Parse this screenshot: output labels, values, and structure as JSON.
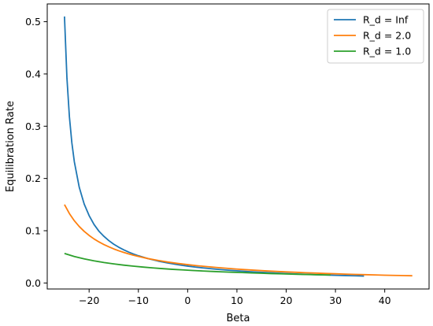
{
  "chart_data": {
    "type": "line",
    "xlabel": "Beta",
    "ylabel": "Equilibration Rate",
    "xlim": [
      -28.5,
      49.0
    ],
    "ylim": [
      -0.0115,
      0.534
    ],
    "xticks": [
      -20,
      -10,
      0,
      10,
      20,
      30,
      40
    ],
    "yticks": [
      0.0,
      0.1,
      0.2,
      0.3,
      0.4,
      0.5
    ],
    "ytick_labels": [
      "0.0",
      "0.1",
      "0.2",
      "0.3",
      "0.4",
      "0.5"
    ],
    "grid": false,
    "legend_placement": "top-right",
    "series": [
      {
        "name": "R_d = Inf",
        "color": "#1f77b4",
        "x": [
          -25,
          -24.5,
          -24,
          -23.5,
          -23,
          -22,
          -21,
          -20,
          -19,
          -18,
          -17,
          -16,
          -15,
          -14,
          -13,
          -12,
          -11,
          -10,
          -8,
          -6,
          -4,
          -2,
          0,
          2,
          4,
          6,
          8,
          10,
          12,
          14,
          16,
          18,
          20,
          22,
          24,
          26,
          28,
          30,
          32,
          34,
          35.8
        ],
        "y": [
          0.51,
          0.392,
          0.318,
          0.268,
          0.232,
          0.183,
          0.151,
          0.129,
          0.112,
          0.099,
          0.0893,
          0.0811,
          0.0742,
          0.0685,
          0.0635,
          0.0592,
          0.0555,
          0.0521,
          0.0465,
          0.0419,
          0.0382,
          0.035,
          0.0323,
          0.03,
          0.028,
          0.0262,
          0.0247,
          0.0233,
          0.022,
          0.0209,
          0.0199,
          0.0189,
          0.0181,
          0.0173,
          0.0166,
          0.0159,
          0.0153,
          0.0147,
          0.0142,
          0.0137,
          0.0133
        ]
      },
      {
        "name": "R_d = 2.0",
        "color": "#ff7f0e",
        "x": [
          -25,
          -24,
          -23,
          -22,
          -21,
          -20,
          -19,
          -18,
          -17,
          -16,
          -15,
          -14,
          -13,
          -12,
          -11,
          -10,
          -8,
          -6,
          -4,
          -2,
          0,
          2,
          4,
          6,
          8,
          10,
          12,
          14,
          16,
          18,
          20,
          22,
          24,
          26,
          28,
          30,
          32,
          34,
          36,
          38,
          40,
          42,
          44,
          45.6
        ],
        "y": [
          0.15,
          0.1328,
          0.1191,
          0.108,
          0.0988,
          0.091,
          0.0843,
          0.0786,
          0.0736,
          0.0692,
          0.0652,
          0.0617,
          0.0586,
          0.0557,
          0.0531,
          0.0508,
          0.0466,
          0.0431,
          0.04,
          0.0374,
          0.0351,
          0.033,
          0.0312,
          0.0295,
          0.028,
          0.0266,
          0.0253,
          0.0242,
          0.0231,
          0.0221,
          0.0212,
          0.0204,
          0.0196,
          0.0189,
          0.0182,
          0.0176,
          0.017,
          0.0164,
          0.0159,
          0.0154,
          0.0149,
          0.0145,
          0.0141,
          0.0138
        ]
      },
      {
        "name": "R_d = 1.0",
        "color": "#2ca02c",
        "x": [
          -25,
          -23,
          -21,
          -19,
          -17,
          -15,
          -13,
          -11,
          -9,
          -7,
          -5,
          -3,
          -1,
          1,
          3,
          5,
          7,
          9,
          11,
          13,
          15,
          17,
          19,
          21,
          23,
          25,
          27,
          29
        ],
        "y": [
          0.0565,
          0.0507,
          0.0461,
          0.0424,
          0.0392,
          0.0365,
          0.0342,
          0.0322,
          0.0304,
          0.0288,
          0.0274,
          0.0261,
          0.025,
          0.0239,
          0.023,
          0.0221,
          0.0213,
          0.0206,
          0.0199,
          0.0192,
          0.0186,
          0.018,
          0.0175,
          0.017,
          0.0165,
          0.016,
          0.0156,
          0.0152
        ]
      }
    ]
  }
}
